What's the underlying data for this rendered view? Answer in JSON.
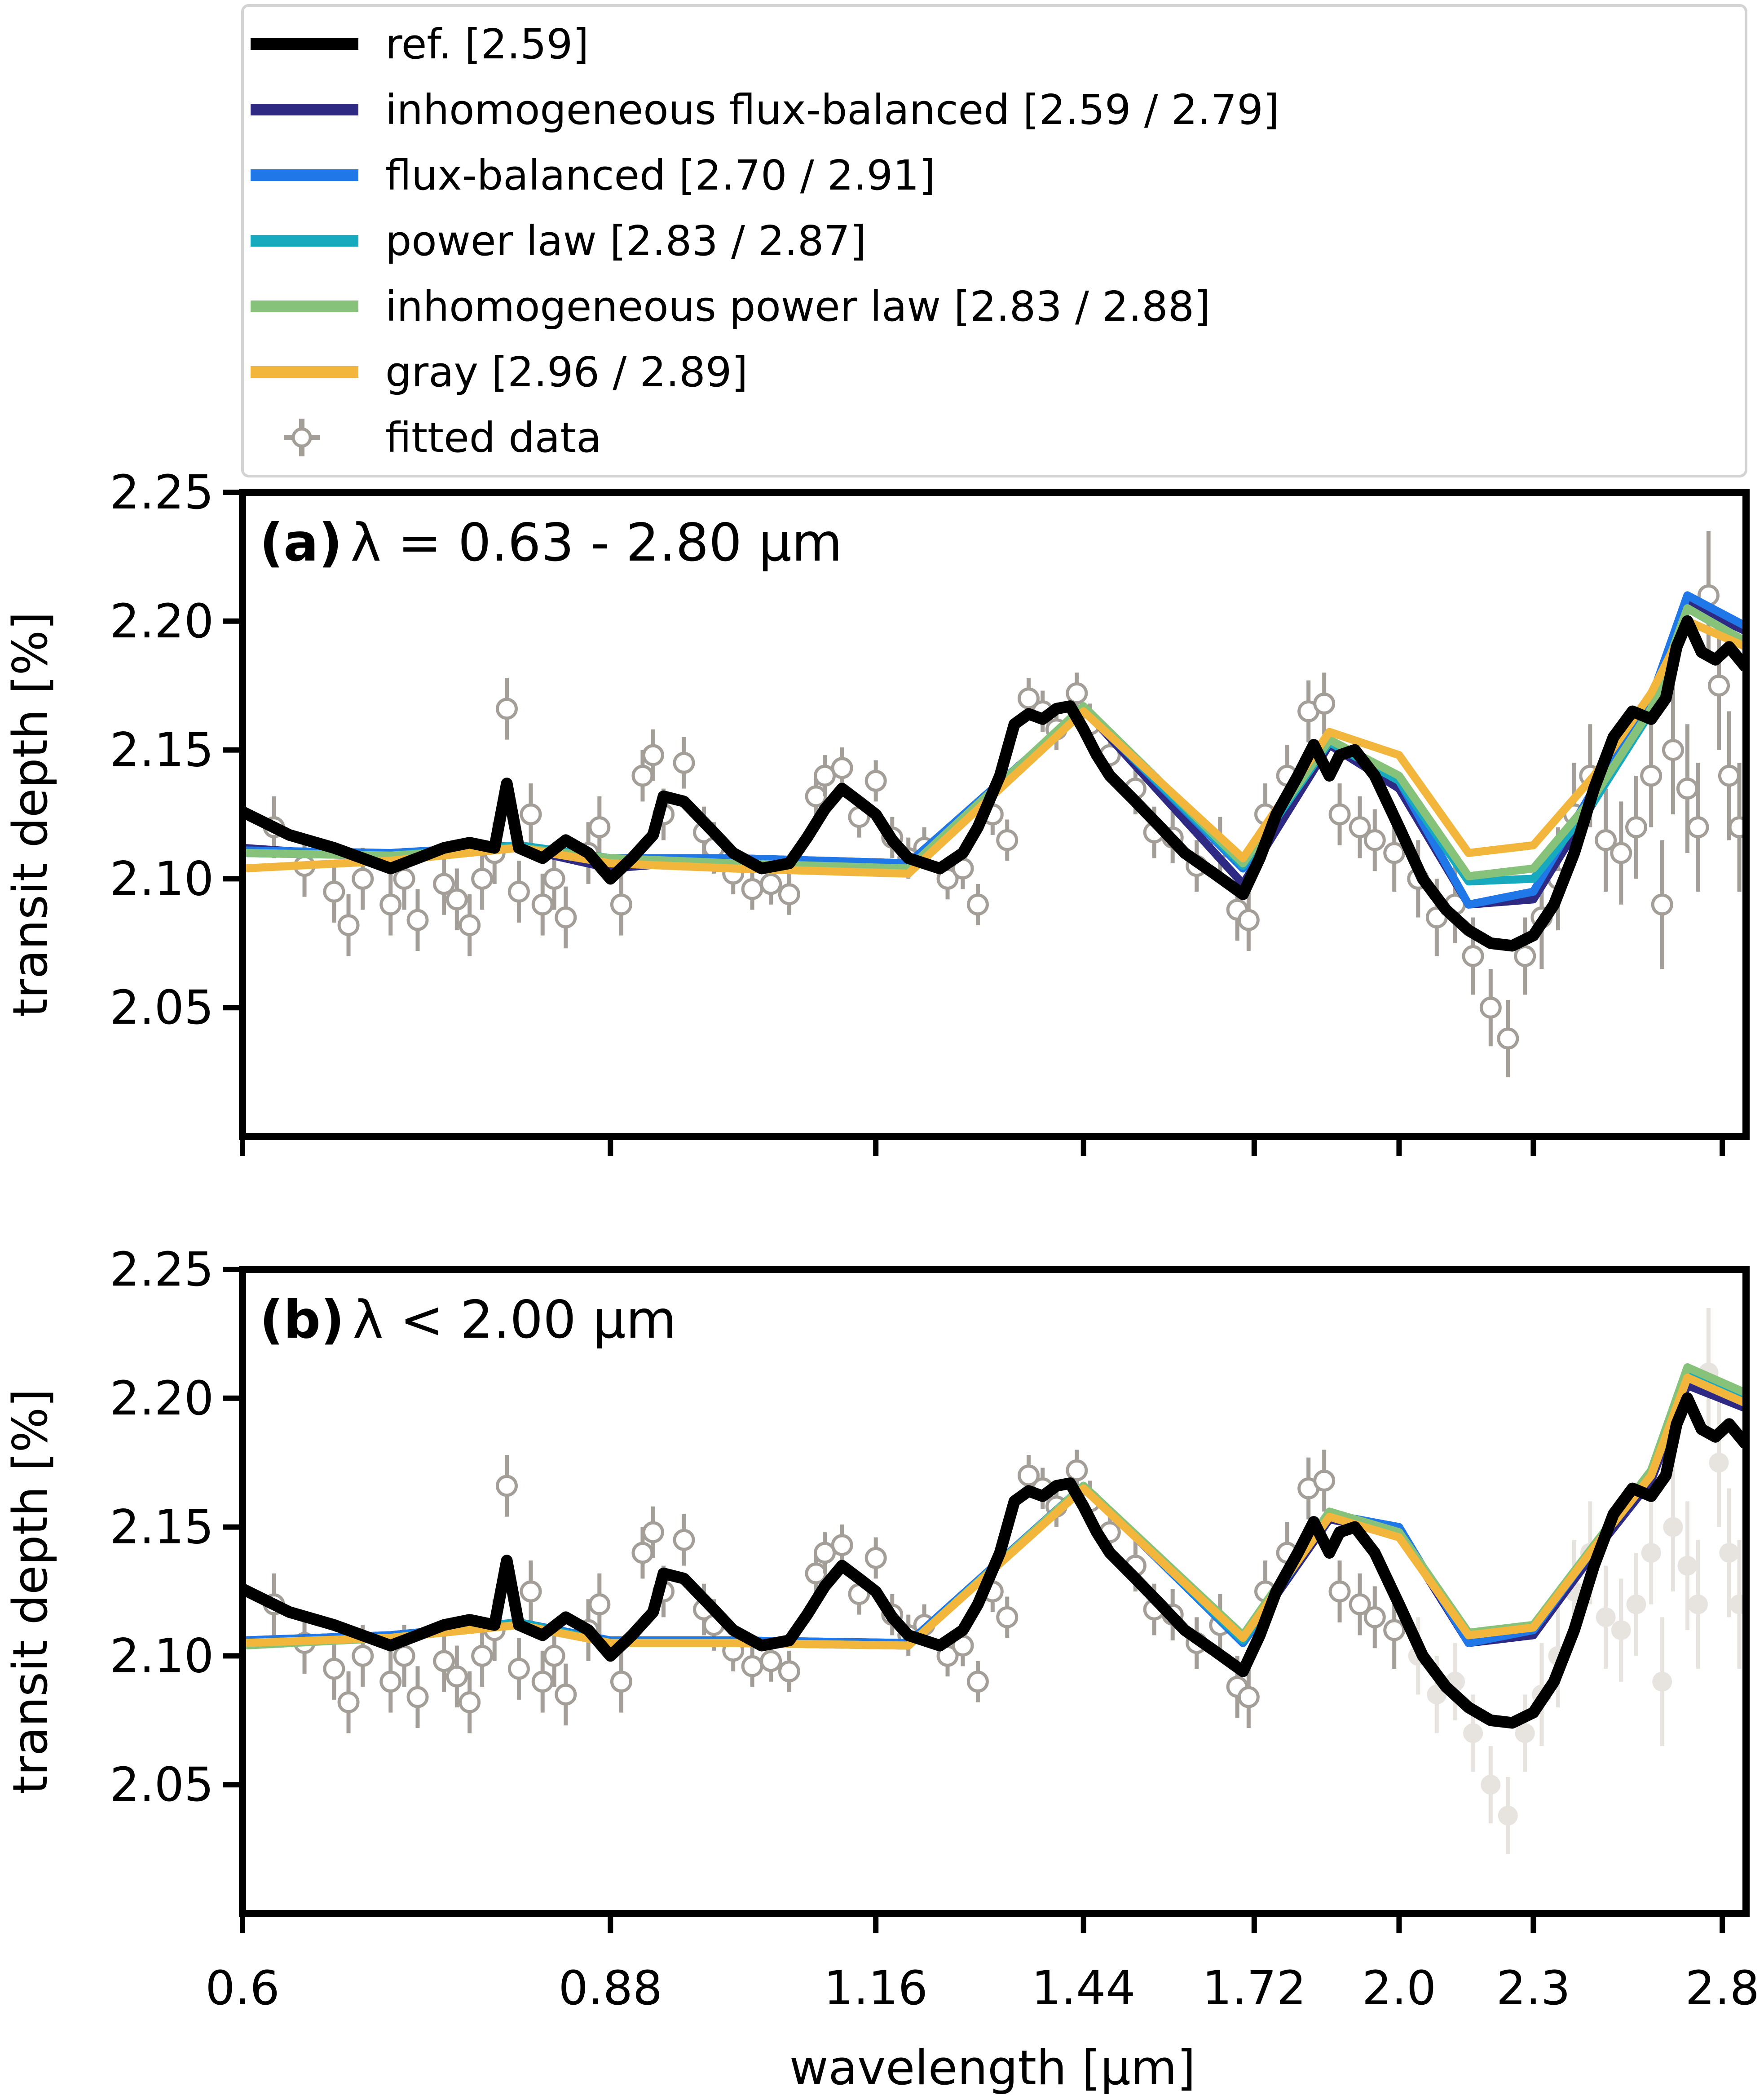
{
  "colors": {
    "ref": "#000000",
    "inhomogeneous_flux_balanced": "#2e2a84",
    "flux_balanced": "#1f77e8",
    "power_law": "#17aabf",
    "inhomogeneous_power_law": "#86c27a",
    "gray": "#f2b63c",
    "fitted_data": "#a39e98",
    "unfitted_data": "#e7e3df"
  },
  "legend": [
    {
      "key": "ref",
      "label": "ref. [2.59]"
    },
    {
      "key": "inhomogeneous_flux_balanced",
      "label": "inhomogeneous flux-balanced [2.59 / 2.79]"
    },
    {
      "key": "flux_balanced",
      "label": "flux-balanced [2.70 / 2.91]"
    },
    {
      "key": "power_law",
      "label": "power law [2.83 / 2.87]"
    },
    {
      "key": "inhomogeneous_power_law",
      "label": "inhomogeneous power law [2.83 / 2.88]"
    },
    {
      "key": "gray",
      "label": "gray [2.96 / 2.89]"
    },
    {
      "key": "fitted_data",
      "label": "fitted data"
    }
  ],
  "panels": [
    {
      "id": "a",
      "tag": "(a)",
      "title": "λ = 0.63 - 2.80 μm"
    },
    {
      "id": "b",
      "tag": "(b)",
      "title": "λ < 2.00 μm"
    }
  ],
  "chart_data": {
    "type": "line",
    "xlabel": "wavelength [μm]",
    "ylabel": "transit depth [%]",
    "xscale": "log",
    "xlim": [
      0.6,
      2.87
    ],
    "ylim": [
      2.0,
      2.25
    ],
    "xticks": [
      0.6,
      0.88,
      1.16,
      1.44,
      1.72,
      2.0,
      2.3,
      2.8
    ],
    "xtick_labels": [
      "0.6",
      "0.88",
      "1.16",
      "1.44",
      "1.72",
      "2.0",
      "2.3",
      "2.8"
    ],
    "yticks": [
      2.05,
      2.1,
      2.15,
      2.2,
      2.25
    ],
    "ytick_labels": [
      "2.05",
      "2.10",
      "2.15",
      "2.20",
      "2.25"
    ],
    "legend_position": "top, above panels",
    "ref_curve": {
      "x": [
        0.6,
        0.63,
        0.66,
        0.7,
        0.72,
        0.74,
        0.76,
        0.78,
        0.79,
        0.8,
        0.82,
        0.84,
        0.86,
        0.88,
        0.9,
        0.92,
        0.93,
        0.95,
        0.98,
        1.0,
        1.03,
        1.06,
        1.08,
        1.1,
        1.12,
        1.14,
        1.16,
        1.18,
        1.2,
        1.24,
        1.27,
        1.29,
        1.32,
        1.34,
        1.36,
        1.38,
        1.4,
        1.42,
        1.44,
        1.46,
        1.48,
        1.52,
        1.56,
        1.6,
        1.65,
        1.7,
        1.73,
        1.76,
        1.8,
        1.83,
        1.86,
        1.88,
        1.91,
        1.95,
        2.0,
        2.05,
        2.1,
        2.15,
        2.2,
        2.25,
        2.3,
        2.35,
        2.4,
        2.45,
        2.5,
        2.55,
        2.6,
        2.64,
        2.67,
        2.7,
        2.74,
        2.78,
        2.82,
        2.87
      ],
      "y": [
        2.126,
        2.117,
        2.112,
        2.104,
        2.108,
        2.112,
        2.114,
        2.112,
        2.137,
        2.112,
        2.108,
        2.115,
        2.11,
        2.1,
        2.108,
        2.117,
        2.132,
        2.13,
        2.118,
        2.11,
        2.104,
        2.106,
        2.116,
        2.127,
        2.135,
        2.13,
        2.125,
        2.115,
        2.108,
        2.104,
        2.11,
        2.12,
        2.14,
        2.16,
        2.164,
        2.162,
        2.166,
        2.167,
        2.158,
        2.148,
        2.14,
        2.13,
        2.12,
        2.11,
        2.102,
        2.094,
        2.108,
        2.125,
        2.14,
        2.152,
        2.14,
        2.148,
        2.15,
        2.14,
        2.12,
        2.1,
        2.088,
        2.08,
        2.075,
        2.074,
        2.078,
        2.09,
        2.11,
        2.135,
        2.155,
        2.165,
        2.162,
        2.17,
        2.19,
        2.2,
        2.188,
        2.185,
        2.19,
        2.182
      ]
    },
    "panel_a_models": {
      "inhomogeneous_flux_balanced": {
        "x": [
          0.6,
          0.7,
          0.8,
          0.88,
          1.0,
          1.2,
          1.44,
          1.7,
          1.86,
          2.0,
          2.15,
          2.3,
          2.45,
          2.6,
          2.7,
          2.87
        ],
        "y": [
          2.112,
          2.108,
          2.112,
          2.104,
          2.108,
          2.106,
          2.166,
          2.098,
          2.152,
          2.135,
          2.09,
          2.092,
          2.13,
          2.168,
          2.207,
          2.196
        ]
      },
      "flux_balanced": {
        "x": [
          0.6,
          0.7,
          0.8,
          0.88,
          1.0,
          1.2,
          1.44,
          1.7,
          1.86,
          2.0,
          2.15,
          2.3,
          2.45,
          2.6,
          2.7,
          2.87
        ],
        "y": [
          2.111,
          2.11,
          2.113,
          2.108,
          2.108,
          2.106,
          2.166,
          2.104,
          2.154,
          2.138,
          2.09,
          2.095,
          2.135,
          2.17,
          2.21,
          2.198
        ]
      },
      "power_law": {
        "x": [
          0.6,
          0.7,
          0.8,
          0.88,
          1.0,
          1.2,
          1.44,
          1.7,
          1.86,
          2.0,
          2.15,
          2.3,
          2.45,
          2.6,
          2.7,
          2.87
        ],
        "y": [
          2.11,
          2.109,
          2.113,
          2.108,
          2.106,
          2.104,
          2.166,
          2.105,
          2.153,
          2.138,
          2.099,
          2.1,
          2.13,
          2.165,
          2.205,
          2.192
        ]
      },
      "inhomogeneous_power_law": {
        "x": [
          0.6,
          0.7,
          0.8,
          0.88,
          1.0,
          1.2,
          1.44,
          1.7,
          1.86,
          2.0,
          2.15,
          2.3,
          2.45,
          2.6,
          2.7,
          2.87
        ],
        "y": [
          2.11,
          2.109,
          2.112,
          2.108,
          2.106,
          2.104,
          2.167,
          2.106,
          2.154,
          2.14,
          2.101,
          2.104,
          2.132,
          2.166,
          2.205,
          2.192
        ]
      },
      "gray": {
        "x": [
          0.6,
          0.7,
          0.8,
          0.88,
          1.0,
          1.2,
          1.44,
          1.7,
          1.86,
          2.0,
          2.15,
          2.3,
          2.45,
          2.6,
          2.7,
          2.87
        ],
        "y": [
          2.104,
          2.107,
          2.112,
          2.106,
          2.104,
          2.102,
          2.165,
          2.108,
          2.157,
          2.148,
          2.11,
          2.113,
          2.14,
          2.172,
          2.2,
          2.19
        ]
      }
    },
    "panel_b_models": {
      "inhomogeneous_flux_balanced": {
        "x": [
          0.6,
          0.7,
          0.8,
          0.88,
          1.0,
          1.2,
          1.44,
          1.7,
          1.86,
          2.0,
          2.15,
          2.3,
          2.45,
          2.6,
          2.7,
          2.87
        ],
        "y": [
          2.106,
          2.108,
          2.113,
          2.105,
          2.106,
          2.105,
          2.166,
          2.105,
          2.153,
          2.148,
          2.105,
          2.108,
          2.14,
          2.168,
          2.205,
          2.196
        ]
      },
      "flux_balanced": {
        "x": [
          0.6,
          0.7,
          0.8,
          0.88,
          1.0,
          1.2,
          1.44,
          1.7,
          1.86,
          2.0,
          2.15,
          2.3,
          2.45,
          2.6,
          2.7,
          2.87
        ],
        "y": [
          2.106,
          2.108,
          2.113,
          2.106,
          2.106,
          2.105,
          2.166,
          2.105,
          2.155,
          2.15,
          2.105,
          2.11,
          2.142,
          2.17,
          2.208,
          2.198
        ]
      },
      "power_law": {
        "x": [
          0.6,
          0.7,
          0.8,
          0.88,
          1.0,
          1.2,
          1.44,
          1.7,
          1.86,
          2.0,
          2.15,
          2.3,
          2.45,
          2.6,
          2.7,
          2.87
        ],
        "y": [
          2.105,
          2.107,
          2.113,
          2.105,
          2.105,
          2.104,
          2.166,
          2.106,
          2.155,
          2.148,
          2.108,
          2.111,
          2.142,
          2.17,
          2.21,
          2.2
        ]
      },
      "inhomogeneous_power_law": {
        "x": [
          0.6,
          0.7,
          0.8,
          0.88,
          1.0,
          1.2,
          1.44,
          1.7,
          1.86,
          2.0,
          2.15,
          2.3,
          2.45,
          2.6,
          2.7,
          2.87
        ],
        "y": [
          2.104,
          2.107,
          2.112,
          2.105,
          2.105,
          2.104,
          2.166,
          2.108,
          2.156,
          2.148,
          2.109,
          2.112,
          2.143,
          2.172,
          2.212,
          2.202
        ]
      },
      "gray": {
        "x": [
          0.6,
          0.7,
          0.8,
          0.88,
          1.0,
          1.2,
          1.44,
          1.7,
          1.86,
          2.0,
          2.15,
          2.3,
          2.45,
          2.6,
          2.7,
          2.87
        ],
        "y": [
          2.105,
          2.107,
          2.112,
          2.105,
          2.105,
          2.104,
          2.165,
          2.107,
          2.154,
          2.146,
          2.108,
          2.111,
          2.142,
          2.17,
          2.208,
          2.198
        ]
      }
    },
    "data_points": {
      "x": [
        0.62,
        0.64,
        0.66,
        0.67,
        0.68,
        0.7,
        0.71,
        0.72,
        0.74,
        0.75,
        0.76,
        0.77,
        0.78,
        0.79,
        0.8,
        0.81,
        0.82,
        0.83,
        0.84,
        0.86,
        0.87,
        0.89,
        0.91,
        0.92,
        0.93,
        0.95,
        0.97,
        0.98,
        1.0,
        1.02,
        1.04,
        1.06,
        1.09,
        1.1,
        1.12,
        1.14,
        1.16,
        1.18,
        1.2,
        1.22,
        1.25,
        1.27,
        1.29,
        1.31,
        1.33,
        1.36,
        1.38,
        1.4,
        1.43,
        1.45,
        1.48,
        1.52,
        1.55,
        1.58,
        1.62,
        1.66,
        1.69,
        1.71,
        1.74,
        1.78,
        1.82,
        1.85,
        1.88,
        1.92,
        1.95,
        1.99,
        2.04,
        2.08,
        2.12,
        2.16,
        2.2,
        2.24,
        2.28,
        2.32,
        2.36,
        2.4,
        2.44,
        2.48,
        2.52,
        2.56,
        2.6,
        2.63,
        2.66,
        2.7,
        2.73,
        2.76,
        2.79,
        2.82,
        2.85
      ],
      "y": [
        2.12,
        2.105,
        2.095,
        2.082,
        2.1,
        2.09,
        2.1,
        2.084,
        2.098,
        2.092,
        2.082,
        2.1,
        2.11,
        2.166,
        2.095,
        2.125,
        2.09,
        2.1,
        2.085,
        2.11,
        2.12,
        2.09,
        2.14,
        2.148,
        2.125,
        2.145,
        2.118,
        2.112,
        2.102,
        2.096,
        2.098,
        2.094,
        2.132,
        2.14,
        2.143,
        2.124,
        2.138,
        2.116,
        2.108,
        2.112,
        2.1,
        2.104,
        2.09,
        2.125,
        2.115,
        2.17,
        2.165,
        2.158,
        2.172,
        2.16,
        2.148,
        2.135,
        2.118,
        2.116,
        2.105,
        2.112,
        2.088,
        2.084,
        2.125,
        2.14,
        2.165,
        2.168,
        2.125,
        2.12,
        2.115,
        2.11,
        2.1,
        2.085,
        2.09,
        2.07,
        2.05,
        2.038,
        2.07,
        2.085,
        2.1,
        2.125,
        2.14,
        2.115,
        2.11,
        2.12,
        2.14,
        2.09,
        2.15,
        2.135,
        2.12,
        2.21,
        2.175,
        2.14,
        2.12
      ],
      "yerr": [
        0.012,
        0.012,
        0.012,
        0.012,
        0.012,
        0.012,
        0.012,
        0.012,
        0.012,
        0.012,
        0.012,
        0.012,
        0.012,
        0.012,
        0.012,
        0.012,
        0.012,
        0.012,
        0.012,
        0.012,
        0.012,
        0.012,
        0.01,
        0.01,
        0.01,
        0.01,
        0.01,
        0.01,
        0.008,
        0.008,
        0.008,
        0.008,
        0.008,
        0.008,
        0.008,
        0.008,
        0.008,
        0.008,
        0.008,
        0.008,
        0.008,
        0.008,
        0.008,
        0.008,
        0.008,
        0.008,
        0.008,
        0.008,
        0.008,
        0.008,
        0.008,
        0.01,
        0.01,
        0.01,
        0.01,
        0.012,
        0.012,
        0.012,
        0.012,
        0.012,
        0.012,
        0.012,
        0.012,
        0.012,
        0.012,
        0.015,
        0.015,
        0.015,
        0.015,
        0.015,
        0.015,
        0.015,
        0.015,
        0.02,
        0.02,
        0.02,
        0.02,
        0.02,
        0.02,
        0.02,
        0.02,
        0.025,
        0.025,
        0.025,
        0.025,
        0.025,
        0.025,
        0.025,
        0.025
      ]
    }
  }
}
